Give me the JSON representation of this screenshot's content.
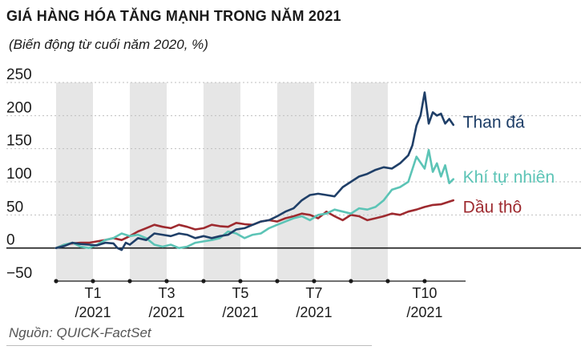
{
  "chart_data": {
    "type": "line",
    "title": "GIÁ HÀNG HÓA TĂNG MẠNH TRONG NĂM 2021",
    "subtitle": "(Biến động từ cuối năm 2020, %)",
    "source": "Nguồn: QUICK-FactSet",
    "ylim": [
      -50,
      250
    ],
    "yticks": [
      250,
      200,
      150,
      100,
      50,
      0,
      -50
    ],
    "xlim": [
      0,
      50
    ],
    "xticks": [
      {
        "x": 0,
        "line1": "",
        "line2": ""
      },
      {
        "x": 4.5,
        "line1": "T1",
        "line2": "/2021"
      },
      {
        "x": 9,
        "line1": "",
        "line2": ""
      },
      {
        "x": 13.5,
        "line1": "T3",
        "line2": "/2021"
      },
      {
        "x": 18,
        "line1": "",
        "line2": ""
      },
      {
        "x": 22.5,
        "line1": "T5",
        "line2": "/2021"
      },
      {
        "x": 27,
        "line1": "",
        "line2": ""
      },
      {
        "x": 31.5,
        "line1": "T7",
        "line2": "/2021"
      },
      {
        "x": 36,
        "line1": "",
        "line2": ""
      },
      {
        "x": 40.5,
        "line1": "",
        "line2": ""
      },
      {
        "x": 45,
        "line1": "T10",
        "line2": "/2021"
      }
    ],
    "shaded_bands": [
      [
        0,
        4.5
      ],
      [
        9,
        13.5
      ],
      [
        18,
        22.5
      ],
      [
        27,
        31.5
      ],
      [
        36,
        40.5
      ]
    ],
    "series": [
      {
        "name": "Than đá",
        "color": "#1f3f68",
        "points": [
          [
            0,
            0
          ],
          [
            1,
            3
          ],
          [
            2,
            8
          ],
          [
            3,
            6
          ],
          [
            4,
            5
          ],
          [
            5,
            4
          ],
          [
            6,
            8
          ],
          [
            7,
            7
          ],
          [
            7.5,
            0
          ],
          [
            8,
            -3
          ],
          [
            8.5,
            8
          ],
          [
            9,
            5
          ],
          [
            10,
            15
          ],
          [
            11,
            12
          ],
          [
            12,
            22
          ],
          [
            13,
            20
          ],
          [
            14,
            18
          ],
          [
            15,
            22
          ],
          [
            16,
            20
          ],
          [
            17,
            15
          ],
          [
            18,
            18
          ],
          [
            19,
            15
          ],
          [
            20,
            18
          ],
          [
            21,
            20
          ],
          [
            22,
            28
          ],
          [
            23,
            30
          ],
          [
            24,
            35
          ],
          [
            25,
            40
          ],
          [
            26,
            42
          ],
          [
            27,
            48
          ],
          [
            28,
            55
          ],
          [
            29,
            60
          ],
          [
            30,
            72
          ],
          [
            31,
            80
          ],
          [
            32,
            82
          ],
          [
            33,
            80
          ],
          [
            34,
            78
          ],
          [
            35,
            92
          ],
          [
            36,
            100
          ],
          [
            37,
            108
          ],
          [
            38,
            112
          ],
          [
            39,
            118
          ],
          [
            40,
            122
          ],
          [
            41,
            120
          ],
          [
            42,
            128
          ],
          [
            43,
            140
          ],
          [
            43.5,
            155
          ],
          [
            44,
            185
          ],
          [
            44.5,
            200
          ],
          [
            45,
            235
          ],
          [
            45.5,
            188
          ],
          [
            46,
            205
          ],
          [
            46.5,
            200
          ],
          [
            47,
            203
          ],
          [
            47.5,
            188
          ],
          [
            48,
            195
          ],
          [
            48.5,
            186
          ]
        ]
      },
      {
        "name": "Khí tự nhiên",
        "color": "#5cc4b6",
        "points": [
          [
            0,
            0
          ],
          [
            1,
            5
          ],
          [
            2,
            8
          ],
          [
            3,
            2
          ],
          [
            4,
            0
          ],
          [
            5,
            5
          ],
          [
            6,
            12
          ],
          [
            7,
            15
          ],
          [
            8,
            22
          ],
          [
            9,
            18
          ],
          [
            10,
            20
          ],
          [
            11,
            15
          ],
          [
            12,
            5
          ],
          [
            13,
            2
          ],
          [
            14,
            5
          ],
          [
            15,
            0
          ],
          [
            16,
            2
          ],
          [
            17,
            8
          ],
          [
            18,
            10
          ],
          [
            19,
            12
          ],
          [
            20,
            15
          ],
          [
            21,
            25
          ],
          [
            22,
            22
          ],
          [
            23,
            15
          ],
          [
            24,
            20
          ],
          [
            25,
            22
          ],
          [
            26,
            30
          ],
          [
            27,
            35
          ],
          [
            28,
            40
          ],
          [
            29,
            45
          ],
          [
            30,
            48
          ],
          [
            31,
            42
          ],
          [
            32,
            50
          ],
          [
            33,
            52
          ],
          [
            34,
            58
          ],
          [
            35,
            55
          ],
          [
            36,
            52
          ],
          [
            37,
            60
          ],
          [
            38,
            58
          ],
          [
            39,
            62
          ],
          [
            40,
            72
          ],
          [
            41,
            88
          ],
          [
            42,
            92
          ],
          [
            43,
            100
          ],
          [
            44,
            138
          ],
          [
            45,
            120
          ],
          [
            45.5,
            148
          ],
          [
            46,
            115
          ],
          [
            46.5,
            128
          ],
          [
            47,
            108
          ],
          [
            47.5,
            125
          ],
          [
            48,
            98
          ],
          [
            48.5,
            104
          ]
        ]
      },
      {
        "name": "Dầu thô",
        "color": "#9e2a2f",
        "points": [
          [
            0,
            0
          ],
          [
            1,
            5
          ],
          [
            2,
            7
          ],
          [
            3,
            8
          ],
          [
            4,
            8
          ],
          [
            5,
            10
          ],
          [
            6,
            12
          ],
          [
            7,
            15
          ],
          [
            8,
            12
          ],
          [
            9,
            18
          ],
          [
            10,
            25
          ],
          [
            11,
            30
          ],
          [
            12,
            35
          ],
          [
            13,
            32
          ],
          [
            14,
            30
          ],
          [
            15,
            35
          ],
          [
            16,
            32
          ],
          [
            17,
            28
          ],
          [
            18,
            30
          ],
          [
            19,
            35
          ],
          [
            20,
            33
          ],
          [
            21,
            32
          ],
          [
            22,
            38
          ],
          [
            23,
            36
          ],
          [
            24,
            35
          ],
          [
            25,
            40
          ],
          [
            26,
            42
          ],
          [
            27,
            40
          ],
          [
            28,
            45
          ],
          [
            29,
            48
          ],
          [
            30,
            52
          ],
          [
            31,
            50
          ],
          [
            32,
            45
          ],
          [
            33,
            55
          ],
          [
            34,
            48
          ],
          [
            35,
            42
          ],
          [
            36,
            50
          ],
          [
            37,
            48
          ],
          [
            38,
            42
          ],
          [
            39,
            45
          ],
          [
            40,
            48
          ],
          [
            41,
            52
          ],
          [
            42,
            50
          ],
          [
            43,
            55
          ],
          [
            44,
            58
          ],
          [
            45,
            62
          ],
          [
            46,
            65
          ],
          [
            47,
            66
          ],
          [
            48,
            70
          ],
          [
            48.5,
            72
          ]
        ]
      }
    ]
  }
}
